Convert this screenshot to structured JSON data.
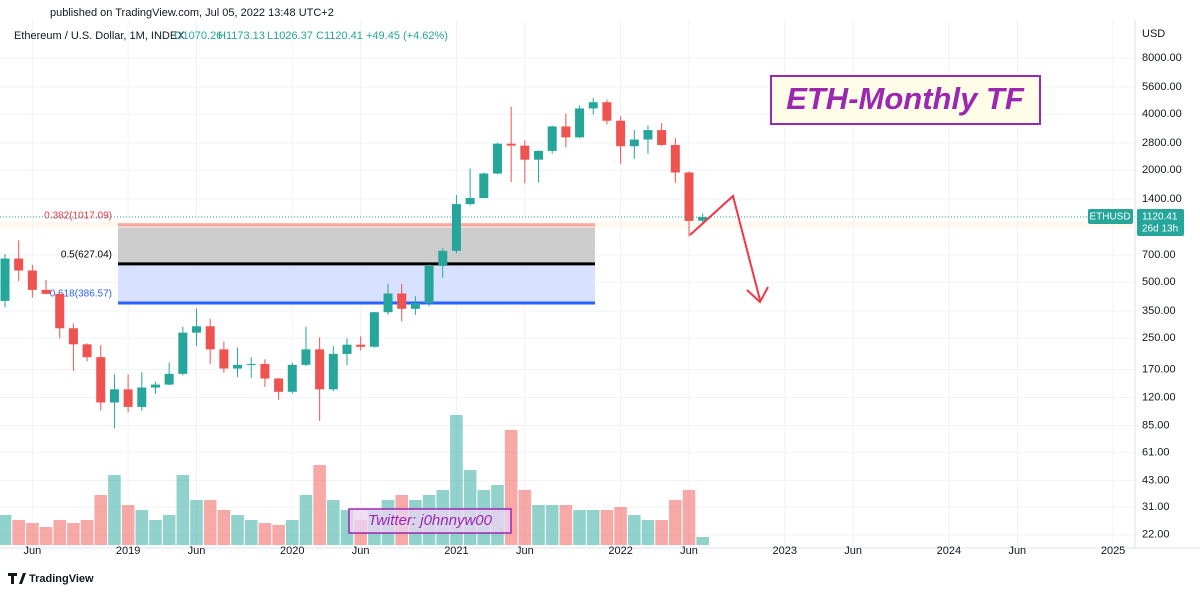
{
  "chart_data": {
    "type": "candlestick",
    "published": "published on TradingView.com, Jul 05, 2022 13:48 UTC+2",
    "legend": {
      "symbol": "Ethereum / U.S. Dollar, 1M, INDEX",
      "open": "O1070.26",
      "high": "H1173.13",
      "low": "L1026.37",
      "close": "C1120.41",
      "change": "+49.45 (+4.62%)"
    },
    "currency": "USD",
    "annotation": "ETH-Monthly TF",
    "watermark": "Twitter: j0hnnyw00",
    "footer": "TradingView",
    "price_tag": {
      "symbol": "ETHUSD",
      "price": "1120.41",
      "countdown": "26d 13h"
    },
    "log_scale": true,
    "grid": true,
    "up_color": "#26a69a",
    "down_color": "#ef5350",
    "categories": [
      null,
      null,
      "Jun",
      null,
      null,
      null,
      null,
      null,
      null,
      "2019",
      null,
      null,
      null,
      null,
      "Jun",
      null,
      null,
      null,
      null,
      null,
      null,
      "2020",
      null,
      null,
      null,
      null,
      "Jun",
      null,
      null,
      null,
      null,
      null,
      null,
      "2021",
      null,
      null,
      null,
      null,
      "Jun",
      null,
      null,
      null,
      null,
      null,
      null,
      "2022",
      null,
      null,
      null,
      null,
      "Jun",
      null,
      null,
      null,
      null,
      null,
      null,
      "2023",
      null,
      null,
      null,
      null,
      "Jun",
      null,
      null,
      null,
      null,
      null,
      null,
      "2024",
      null,
      null,
      null,
      null,
      "Jun",
      null,
      null,
      null,
      null,
      null,
      null,
      "2025"
    ],
    "open": [
      397,
      670,
      578,
      455,
      433,
      283,
      232,
      198,
      113,
      133,
      107,
      136,
      141,
      161,
      268,
      290,
      218,
      172,
      180,
      182,
      152,
      129,
      180,
      218,
      133,
      206,
      231,
      225,
      345,
      435,
      360,
      386,
      612,
      737,
      1314,
      1416,
      1918,
      2773,
      2707,
      2275,
      2536,
      3433,
      3001,
      4288,
      4631,
      3683,
      2688,
      2919,
      3282,
      2730,
      1942,
      1070.26,
      null,
      null,
      null,
      null,
      null,
      null,
      null,
      null,
      null,
      null,
      null,
      null,
      null,
      null,
      null,
      null,
      null,
      null,
      null,
      null,
      null,
      null,
      null,
      null,
      null,
      null,
      null,
      null,
      null,
      null
    ],
    "high": [
      709,
      838,
      620,
      515,
      433,
      300,
      235,
      230,
      160,
      160,
      165,
      146,
      185,
      288,
      361,
      318,
      240,
      223,
      198,
      193,
      153,
      185,
      288,
      253,
      227,
      250,
      256,
      346,
      490,
      489,
      421,
      623,
      760,
      1470,
      2040,
      1945,
      2800,
      4380,
      2890,
      2550,
      3470,
      4030,
      4460,
      4870,
      4780,
      3890,
      3280,
      3480,
      3580,
      2970,
      1970,
      1173.13,
      null,
      null,
      null,
      null,
      null,
      null,
      null,
      null,
      null,
      null,
      null,
      null,
      null,
      null,
      null,
      null,
      null,
      null,
      null,
      null,
      null,
      null,
      null,
      null,
      null,
      null,
      null,
      null,
      null,
      null
    ],
    "low": [
      366,
      507,
      414,
      430,
      250,
      167,
      188,
      102,
      82,
      100,
      102,
      126,
      140,
      158,
      227,
      182,
      163,
      155,
      153,
      137,
      117,
      126,
      177,
      90,
      130,
      179,
      215,
      223,
      334,
      308,
      334,
      372,
      528,
      714,
      1290,
      1411,
      1900,
      1730,
      1700,
      1720,
      2450,
      2650,
      2970,
      3970,
      3520,
      2160,
      2300,
      2450,
      2700,
      1710,
      880,
      1026.37,
      null,
      null,
      null,
      null,
      null,
      null,
      null,
      null,
      null,
      null,
      null,
      null,
      null,
      null,
      null,
      null,
      null,
      null,
      null,
      null,
      null,
      null,
      null,
      null,
      null,
      null,
      null,
      null,
      null,
      null
    ],
    "close": [
      670,
      578,
      455,
      433,
      283,
      232,
      198,
      113,
      133,
      107,
      136,
      141,
      161,
      268,
      290,
      218,
      172,
      180,
      182,
      152,
      129,
      180,
      218,
      133,
      206,
      231,
      225,
      345,
      435,
      360,
      386,
      612,
      737,
      1314,
      1416,
      1918,
      2773,
      2707,
      2275,
      2536,
      3433,
      3001,
      4288,
      4631,
      3683,
      2688,
      2919,
      3282,
      2730,
      1942,
      1067,
      1120.41,
      null,
      null,
      null,
      null,
      null,
      null,
      null,
      null,
      null,
      null,
      null,
      null,
      null,
      null,
      null,
      null,
      null,
      null,
      null,
      null,
      null,
      null,
      null,
      null,
      null,
      null,
      null,
      null,
      null,
      null
    ],
    "volume": [
      30,
      25,
      22,
      18,
      25,
      22,
      25,
      50,
      70,
      40,
      35,
      25,
      30,
      70,
      45,
      45,
      35,
      30,
      25,
      22,
      20,
      25,
      50,
      80,
      45,
      35,
      25,
      35,
      45,
      50,
      45,
      50,
      55,
      130,
      75,
      55,
      60,
      115,
      55,
      40,
      40,
      40,
      35,
      35,
      35,
      38,
      30,
      25,
      25,
      45,
      55,
      8,
      null,
      null,
      null,
      null,
      null,
      null,
      null,
      null,
      null,
      null,
      null,
      null,
      null,
      null,
      null,
      null,
      null,
      null,
      null,
      null,
      null,
      null,
      null,
      null,
      null,
      null,
      null,
      null,
      null,
      null
    ],
    "volume_lim": [
      0,
      525
    ],
    "ylim": [
      19.4,
      12800
    ],
    "yticks": [
      {
        "value": 8000,
        "label": "8000.00"
      },
      {
        "value": 5600,
        "label": "5600.00"
      },
      {
        "value": 4000,
        "label": "4000.00"
      },
      {
        "value": 2800,
        "label": "2800.00"
      },
      {
        "value": 2000,
        "label": "2000.00"
      },
      {
        "value": 1400,
        "label": "1400.00"
      },
      {
        "value": 700,
        "label": "700.00"
      },
      {
        "value": 500,
        "label": "500.00"
      },
      {
        "value": 350,
        "label": "350.00"
      },
      {
        "value": 250,
        "label": "250.00"
      },
      {
        "value": 170,
        "label": "170.00"
      },
      {
        "value": 120,
        "label": "120.00"
      },
      {
        "value": 85,
        "label": "85.00"
      },
      {
        "value": 61,
        "label": "61.00"
      },
      {
        "value": 43,
        "label": "43.00"
      },
      {
        "value": 31,
        "label": "31.00"
      },
      {
        "value": 22,
        "label": "22.00"
      }
    ],
    "fib_levels": [
      {
        "value": 1017.09,
        "label": "0.382(1017.09)",
        "color": "#f23645"
      },
      {
        "value": 627.04,
        "label": "0.5(627.04)",
        "color": "#000000"
      },
      {
        "value": 386.57,
        "label": "0.618(386.57)",
        "color": "#2962ff"
      }
    ],
    "fib_fills": [
      "#c8c8c8",
      "#d4deff"
    ]
  }
}
